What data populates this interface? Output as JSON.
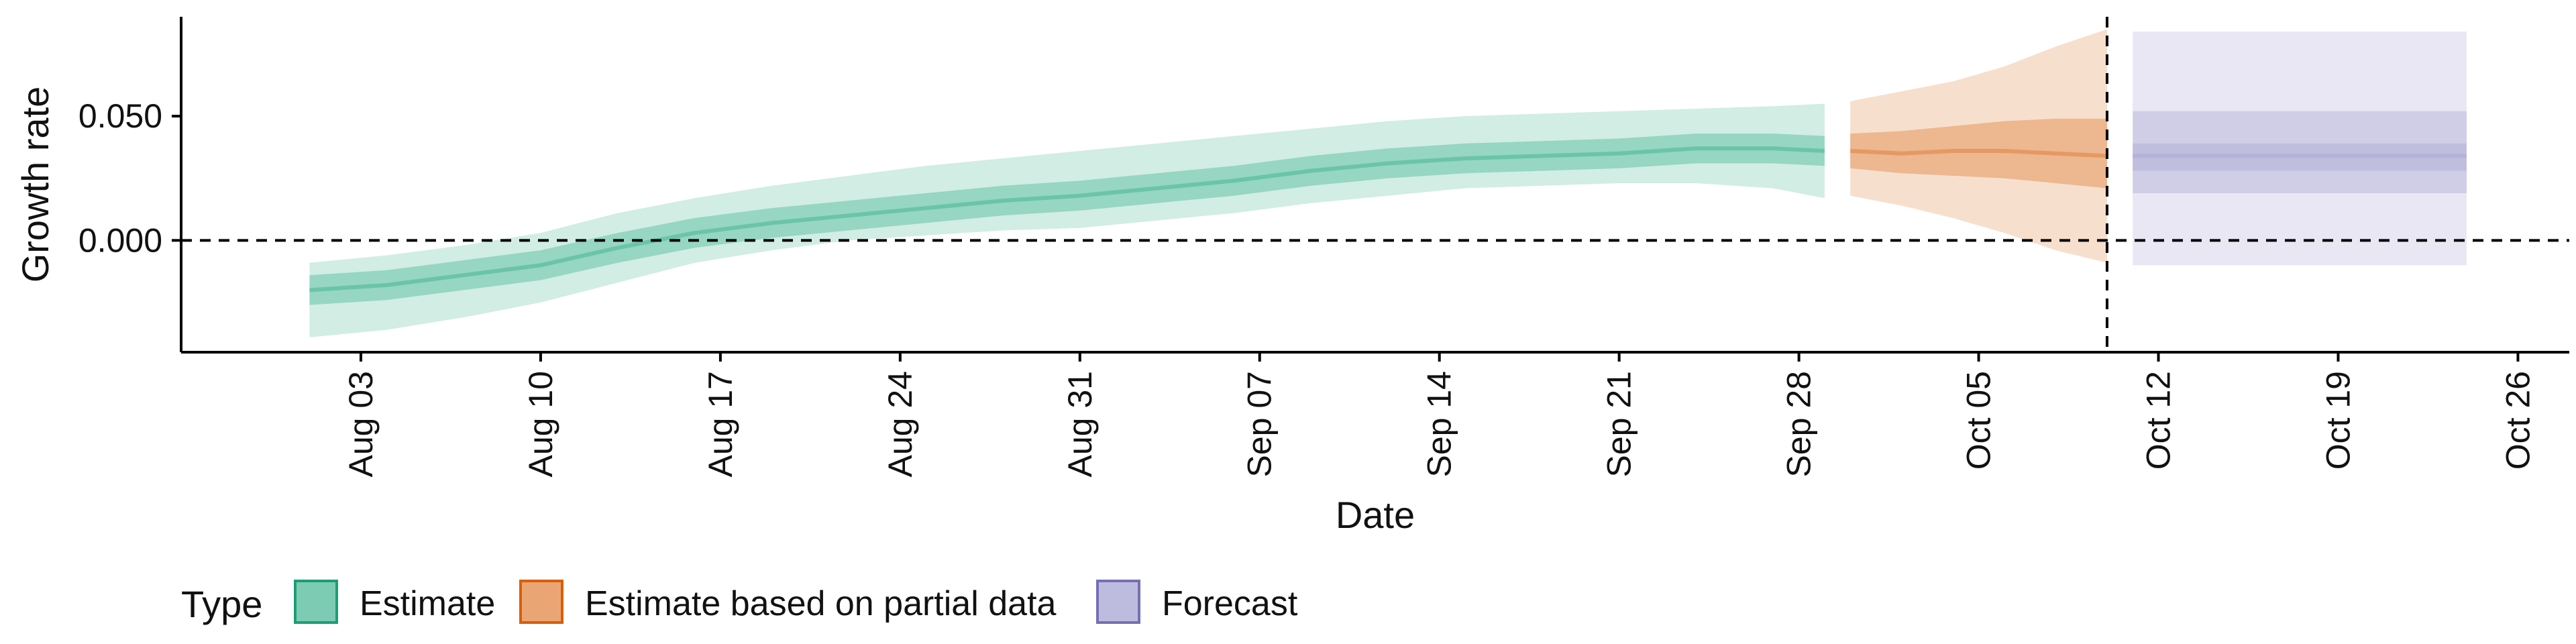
{
  "chart_data": {
    "type": "area",
    "xlabel": "Date",
    "ylabel": "Growth rate",
    "ylim": [
      -0.045,
      0.09
    ],
    "xlim": [
      "2020-07-27",
      "2020-10-28"
    ],
    "y_ticks": [
      0.0,
      0.05
    ],
    "y_tick_labels": [
      "0.000",
      "0.050"
    ],
    "x_ticks": [
      "2020-08-03",
      "2020-08-10",
      "2020-08-17",
      "2020-08-24",
      "2020-08-31",
      "2020-09-07",
      "2020-09-14",
      "2020-09-21",
      "2020-09-28",
      "2020-10-05",
      "2020-10-12",
      "2020-10-19",
      "2020-10-26"
    ],
    "x_tick_labels": [
      "Aug 03",
      "Aug 10",
      "Aug 17",
      "Aug 24",
      "Aug 31",
      "Sep 07",
      "Sep 14",
      "Sep 21",
      "Sep 28",
      "Oct 05",
      "Oct 12",
      "Oct 19",
      "Oct 26"
    ],
    "reference_lines": {
      "horizontal_y": 0.0,
      "vertical_x": "2020-10-10"
    },
    "grid": false,
    "legend": {
      "title": "Type",
      "position": "bottom-left",
      "entries": [
        "Estimate",
        "Estimate based on partial data",
        "Forecast"
      ]
    },
    "series": [
      {
        "name": "Estimate",
        "color": "#1b9e77",
        "fill": "#66c2a5",
        "x": [
          "2020-08-01",
          "2020-08-04",
          "2020-08-07",
          "2020-08-10",
          "2020-08-13",
          "2020-08-16",
          "2020-08-19",
          "2020-08-22",
          "2020-08-25",
          "2020-08-28",
          "2020-08-31",
          "2020-09-03",
          "2020-09-06",
          "2020-09-09",
          "2020-09-12",
          "2020-09-15",
          "2020-09-18",
          "2020-09-21",
          "2020-09-24",
          "2020-09-27",
          "2020-09-29"
        ],
        "median": [
          -0.02,
          -0.018,
          -0.014,
          -0.01,
          -0.003,
          0.003,
          0.007,
          0.01,
          0.013,
          0.016,
          0.018,
          0.021,
          0.024,
          0.028,
          0.031,
          0.033,
          0.034,
          0.035,
          0.037,
          0.037,
          0.036
        ],
        "lower_25": [
          -0.026,
          -0.024,
          -0.02,
          -0.016,
          -0.009,
          -0.003,
          0.001,
          0.004,
          0.007,
          0.01,
          0.012,
          0.015,
          0.018,
          0.022,
          0.025,
          0.027,
          0.028,
          0.029,
          0.031,
          0.031,
          0.03
        ],
        "upper_75": [
          -0.014,
          -0.012,
          -0.008,
          -0.004,
          0.003,
          0.009,
          0.013,
          0.016,
          0.019,
          0.022,
          0.024,
          0.027,
          0.03,
          0.034,
          0.037,
          0.039,
          0.04,
          0.041,
          0.043,
          0.043,
          0.042
        ],
        "lower_90": [
          -0.039,
          -0.036,
          -0.031,
          -0.025,
          -0.017,
          -0.009,
          -0.004,
          0.0,
          0.002,
          0.004,
          0.005,
          0.008,
          0.011,
          0.015,
          0.018,
          0.021,
          0.022,
          0.023,
          0.023,
          0.021,
          0.017
        ],
        "upper_90": [
          -0.009,
          -0.006,
          -0.002,
          0.003,
          0.011,
          0.017,
          0.022,
          0.026,
          0.03,
          0.033,
          0.036,
          0.039,
          0.042,
          0.045,
          0.048,
          0.05,
          0.051,
          0.052,
          0.053,
          0.054,
          0.055
        ]
      },
      {
        "name": "Estimate based on partial data",
        "color": "#d95f02",
        "fill": "#e6955c",
        "x": [
          "2020-09-30",
          "2020-10-02",
          "2020-10-04",
          "2020-10-06",
          "2020-10-08",
          "2020-10-10"
        ],
        "median": [
          0.036,
          0.035,
          0.036,
          0.036,
          0.035,
          0.034
        ],
        "lower_25": [
          0.029,
          0.027,
          0.026,
          0.025,
          0.023,
          0.021
        ],
        "upper_75": [
          0.043,
          0.044,
          0.046,
          0.048,
          0.049,
          0.049
        ],
        "lower_90": [
          0.018,
          0.014,
          0.009,
          0.003,
          -0.004,
          -0.009
        ],
        "upper_90": [
          0.056,
          0.06,
          0.064,
          0.07,
          0.078,
          0.085
        ]
      },
      {
        "name": "Forecast",
        "color": "#7570b3",
        "fill": "#b3b0d8",
        "x": [
          "2020-10-11",
          "2020-10-24"
        ],
        "median": [
          0.034,
          0.034
        ],
        "lower_25": [
          0.028,
          0.028
        ],
        "upper_75": [
          0.039,
          0.039
        ],
        "lower_50": [
          0.019,
          0.019
        ],
        "upper_50": [
          0.052,
          0.052
        ],
        "lower_90": [
          -0.01,
          -0.01
        ],
        "upper_90": [
          0.084,
          0.084
        ]
      }
    ]
  }
}
